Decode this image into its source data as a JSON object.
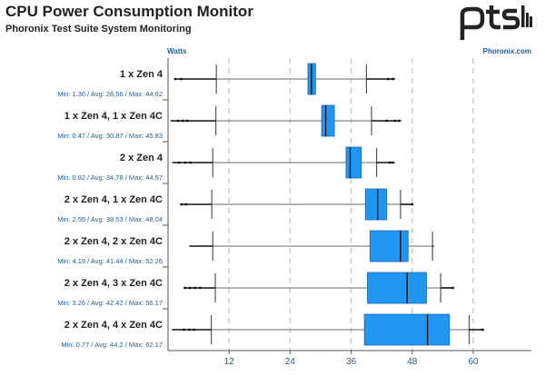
{
  "header": {
    "title": "CPU Power Consumption Monitor",
    "subtitle": "Phoronix Test Suite System Monitoring",
    "logo_text": "ptsh"
  },
  "colors": {
    "box_fill": "#2196f3",
    "box_stroke": "#1565c0",
    "text_dark": "#222222",
    "accent": "#1f5c99",
    "grid": "#cccccc",
    "axis": "#555555"
  },
  "chart_data": {
    "type": "boxplot",
    "title": "CPU Power Consumption Monitor",
    "subtitle": "Phoronix Test Suite System Monitoring",
    "unit_label": "Watts",
    "source_label": "Phoronix.com",
    "xlim": [
      0,
      72
    ],
    "xticks": [
      12,
      24,
      36,
      48,
      60
    ],
    "grid": true,
    "series": [
      {
        "name": "1 x Zen 4",
        "stats_text": "Min: 1.36 / Avg: 28.56 / Max: 44.62",
        "min": 1.36,
        "avg": 28.56,
        "max": 44.62,
        "q1": 27.5,
        "median": 28.2,
        "q3": 29.0,
        "whisker_low": 9.5,
        "whisker_high": 39.0,
        "outliers": [
          1.4,
          2.6,
          43.3,
          44.2
        ]
      },
      {
        "name": "1 x Zen 4, 1 x Zen 4C",
        "stats_text": "Min: 0.47 / Avg: 30.87 / Max: 45.83",
        "min": 0.47,
        "avg": 30.87,
        "max": 45.83,
        "q1": 30.2,
        "median": 31.0,
        "q3": 32.7,
        "whisker_low": 9.4,
        "whisker_high": 40.0,
        "outliers": [
          2.0,
          2.9,
          3.8,
          43.0,
          44.6,
          45.4
        ]
      },
      {
        "name": "2 x Zen 4",
        "stats_text": "Min: 0.82 / Avg: 34.78 / Max: 44.57",
        "min": 0.82,
        "avg": 34.78,
        "max": 44.57,
        "q1": 35.0,
        "median": 35.8,
        "q3": 38.0,
        "whisker_low": 8.8,
        "whisker_high": 41.0,
        "outliers": [
          2.2,
          3.4,
          4.4,
          43.6,
          44.2
        ]
      },
      {
        "name": "2 x Zen 4, 1 x Zen 4C",
        "stats_text": "Min: 2.55 / Avg: 38.53 / Max: 48.04",
        "min": 2.55,
        "avg": 38.53,
        "max": 48.04,
        "q1": 38.8,
        "median": 41.2,
        "q3": 43.0,
        "whisker_low": 8.6,
        "whisker_high": 45.7,
        "outliers": [
          2.6,
          3.5,
          48.0
        ]
      },
      {
        "name": "2 x Zen 4, 2 x Zen 4C",
        "stats_text": "Min: 4.19 / Avg: 41.44 / Max: 52.26",
        "min": 4.19,
        "avg": 41.44,
        "max": 52.26,
        "q1": 39.7,
        "median": 45.7,
        "q3": 47.2,
        "whisker_low": 8.8,
        "whisker_high": 52.0,
        "outliers": []
      },
      {
        "name": "2 x Zen 4, 3 x Zen 4C",
        "stats_text": "Min: 3.26 / Avg: 42.42 / Max: 56.17",
        "min": 3.26,
        "avg": 42.42,
        "max": 56.17,
        "q1": 39.2,
        "median": 47.0,
        "q3": 50.8,
        "whisker_low": 9.3,
        "whisker_high": 53.6,
        "outliers": [
          3.3,
          4.3,
          5.3,
          6.3,
          56.0
        ]
      },
      {
        "name": "2 x Zen 4, 4 x Zen 4C",
        "stats_text": "Min: 0.77 / Avg: 44.2 / Max: 62.17",
        "min": 0.77,
        "avg": 44.2,
        "max": 62.17,
        "q1": 38.6,
        "median": 51.0,
        "q3": 55.3,
        "whisker_low": 8.5,
        "whisker_high": 59.2,
        "outliers": [
          3.1,
          4.2,
          5.1,
          61.8
        ]
      }
    ]
  }
}
